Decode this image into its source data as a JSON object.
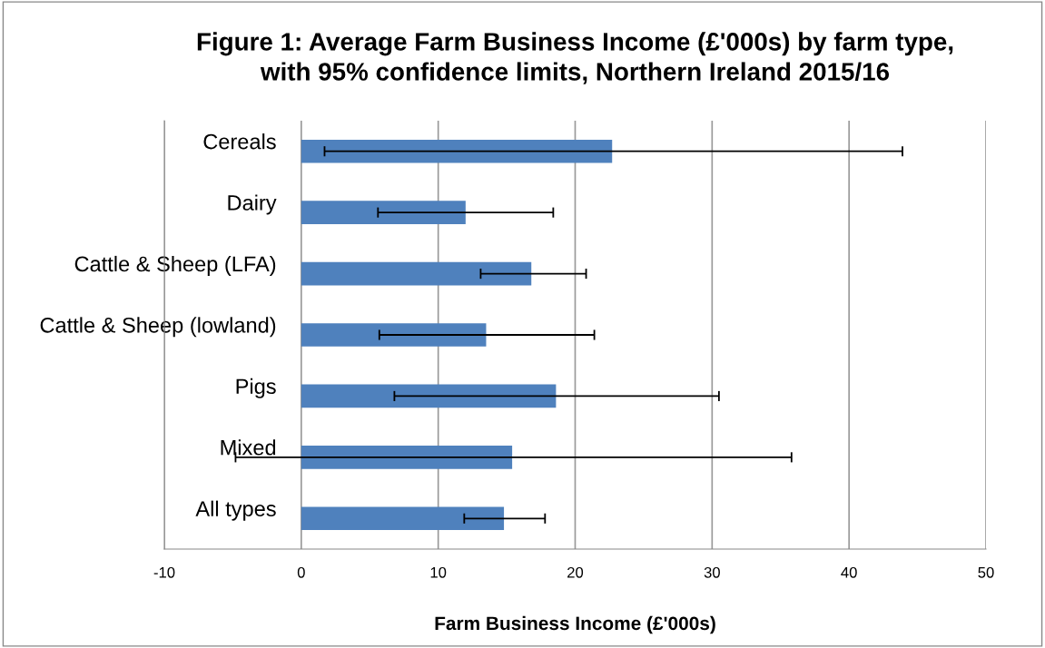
{
  "chart_data": {
    "type": "bar",
    "orientation": "horizontal",
    "title": "Figure 1: Average Farm Business Income (£'000s) by farm type,\nwith 95% confidence limits, Northern Ireland 2015/16",
    "xlabel": "Farm Business Income (£'000s)",
    "categories": [
      "Cereals",
      "Dairy",
      "Cattle & Sheep (LFA)",
      "Cattle & Sheep (lowland)",
      "Pigs",
      "Mixed",
      "All types"
    ],
    "values": [
      22.7,
      12.0,
      16.8,
      13.5,
      18.6,
      15.4,
      14.8
    ],
    "errors": [
      [
        1.7,
        43.9
      ],
      [
        5.6,
        18.4
      ],
      [
        13.1,
        20.8
      ],
      [
        5.7,
        21.4
      ],
      [
        6.8,
        30.5
      ],
      [
        -4.8,
        35.8
      ],
      [
        11.9,
        17.8
      ]
    ],
    "color": "#4f81bd",
    "xlim": [
      -10,
      50
    ],
    "xticks": [
      -10,
      0,
      10,
      20,
      30,
      40,
      50
    ],
    "grid": "x"
  }
}
